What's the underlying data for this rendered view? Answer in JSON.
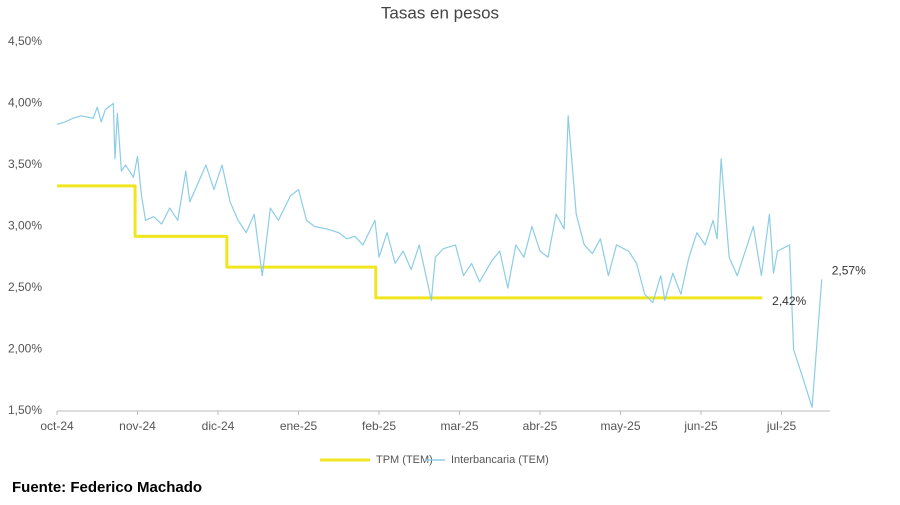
{
  "chart_data": {
    "type": "line",
    "title": "Tasas en pesos",
    "source": "Fuente: Federico Machado",
    "grid": false,
    "xlim": [
      0,
      9.6
    ],
    "xticks": [
      {
        "value": 0,
        "label": "oct-24"
      },
      {
        "value": 1,
        "label": "nov-24"
      },
      {
        "value": 2,
        "label": "dic-24"
      },
      {
        "value": 3,
        "label": "ene-25"
      },
      {
        "value": 4,
        "label": "feb-25"
      },
      {
        "value": 5,
        "label": "mar-25"
      },
      {
        "value": 6,
        "label": "abr-25"
      },
      {
        "value": 7,
        "label": "may-25"
      },
      {
        "value": 8,
        "label": "jun-25"
      },
      {
        "value": 9,
        "label": "jul-25"
      }
    ],
    "ylim": [
      1.5,
      4.5
    ],
    "yticks": [
      {
        "value": 1.5,
        "label": "1,50%"
      },
      {
        "value": 2.0,
        "label": "2,00%"
      },
      {
        "value": 2.5,
        "label": "2,50%"
      },
      {
        "value": 3.0,
        "label": "3,00%"
      },
      {
        "value": 3.5,
        "label": "3,50%"
      },
      {
        "value": 4.0,
        "label": "4,00%"
      },
      {
        "value": 4.5,
        "label": "4,50%"
      }
    ],
    "series": [
      {
        "name": "TPM (TEM)",
        "color": "#f0e620",
        "width": 3,
        "x": [
          0,
          0.97,
          0.97,
          2.11,
          2.11,
          3.96,
          3.96,
          8.76
        ],
        "values": [
          3.33,
          3.33,
          2.92,
          2.92,
          2.67,
          2.67,
          2.42,
          2.42
        ]
      },
      {
        "name": "Interbancaria (TEM)",
        "color": "#8ccde6",
        "width": 1.2,
        "x": [
          0,
          0.1,
          0.2,
          0.3,
          0.45,
          0.5,
          0.55,
          0.6,
          0.7,
          0.72,
          0.75,
          0.8,
          0.85,
          0.95,
          1.0,
          1.05,
          1.1,
          1.2,
          1.3,
          1.4,
          1.5,
          1.6,
          1.65,
          1.75,
          1.85,
          1.95,
          2.05,
          2.15,
          2.25,
          2.35,
          2.45,
          2.55,
          2.65,
          2.75,
          2.9,
          3.0,
          3.1,
          3.2,
          3.35,
          3.5,
          3.6,
          3.7,
          3.8,
          3.95,
          4.0,
          4.1,
          4.2,
          4.3,
          4.4,
          4.5,
          4.6,
          4.65,
          4.7,
          4.8,
          4.95,
          5.05,
          5.15,
          5.25,
          5.4,
          5.5,
          5.6,
          5.7,
          5.8,
          5.9,
          6.0,
          6.1,
          6.2,
          6.3,
          6.35,
          6.45,
          6.55,
          6.65,
          6.75,
          6.85,
          6.95,
          7.1,
          7.2,
          7.3,
          7.4,
          7.5,
          7.55,
          7.65,
          7.75,
          7.85,
          7.95,
          8.05,
          8.15,
          8.2,
          8.25,
          8.35,
          8.45,
          8.55,
          8.65,
          8.75,
          8.85,
          8.9,
          8.95,
          9.1,
          9.15,
          9.25,
          9.38,
          9.5
        ],
        "values": [
          3.83,
          3.85,
          3.88,
          3.9,
          3.88,
          3.97,
          3.85,
          3.95,
          4.0,
          3.55,
          3.92,
          3.45,
          3.5,
          3.4,
          3.57,
          3.25,
          3.05,
          3.08,
          3.02,
          3.15,
          3.05,
          3.45,
          3.2,
          3.35,
          3.5,
          3.3,
          3.5,
          3.2,
          3.05,
          2.95,
          3.1,
          2.6,
          3.15,
          3.05,
          3.25,
          3.3,
          3.05,
          3.0,
          2.98,
          2.95,
          2.9,
          2.92,
          2.85,
          3.05,
          2.75,
          2.95,
          2.7,
          2.8,
          2.65,
          2.85,
          2.55,
          2.4,
          2.75,
          2.82,
          2.85,
          2.6,
          2.7,
          2.55,
          2.72,
          2.8,
          2.5,
          2.85,
          2.75,
          3.0,
          2.8,
          2.75,
          3.1,
          2.98,
          3.9,
          3.1,
          2.85,
          2.78,
          2.9,
          2.6,
          2.85,
          2.8,
          2.7,
          2.45,
          2.38,
          2.6,
          2.4,
          2.62,
          2.45,
          2.75,
          2.95,
          2.85,
          3.05,
          2.9,
          3.55,
          2.75,
          2.6,
          2.8,
          3.0,
          2.6,
          3.1,
          2.62,
          2.8,
          2.85,
          2.0,
          1.8,
          1.53,
          2.57
        ]
      }
    ],
    "annotations": [
      {
        "text": "2,42%",
        "series": 0,
        "x": 8.76,
        "value": 2.42
      },
      {
        "text": "2,57%",
        "series": 1,
        "x": 9.5,
        "value": 2.57
      }
    ]
  }
}
